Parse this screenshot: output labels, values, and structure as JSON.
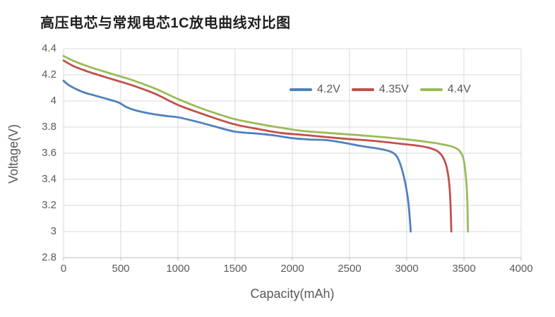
{
  "title": "高压电芯与常规电芯1C放电曲线对比图",
  "colors": {
    "background": "#FFFFFF",
    "grid": "#D9D9D9",
    "axis": "#BFBFBF",
    "tick_text": "#595959",
    "axis_title_text": "#595959",
    "title_text": "#1F1F1F",
    "series_blue": "#4F81BD",
    "series_red": "#C0504D",
    "series_green": "#9BBB59"
  },
  "chart_data": {
    "type": "line",
    "title": "高压电芯与常规电芯1C放电曲线对比图",
    "xlabel": "Capacity(mAh)",
    "ylabel": "Voltage(V)",
    "xlim": [
      0,
      4000
    ],
    "ylim": [
      2.8,
      4.4
    ],
    "grid": true,
    "legend_position": "top-right-inside",
    "x_ticks": [
      {
        "value": 0,
        "label": "0"
      },
      {
        "value": 500,
        "label": "500"
      },
      {
        "value": 1000,
        "label": "1000"
      },
      {
        "value": 1500,
        "label": "1500"
      },
      {
        "value": 2000,
        "label": "2000"
      },
      {
        "value": 2500,
        "label": "2500"
      },
      {
        "value": 3000,
        "label": "3000"
      },
      {
        "value": 3500,
        "label": "3500"
      },
      {
        "value": 4000,
        "label": "4000"
      }
    ],
    "y_ticks": [
      {
        "value": 2.8,
        "label": "2.8"
      },
      {
        "value": 3.0,
        "label": "3"
      },
      {
        "value": 3.2,
        "label": "3.2"
      },
      {
        "value": 3.4,
        "label": "3.4"
      },
      {
        "value": 3.6,
        "label": "3.6"
      },
      {
        "value": 3.8,
        "label": "3.8"
      },
      {
        "value": 4.0,
        "label": "4"
      },
      {
        "value": 4.2,
        "label": "4.2"
      },
      {
        "value": 4.4,
        "label": "4.4"
      }
    ],
    "series": [
      {
        "name": "4.2V",
        "color": "#4F81BD",
        "points": [
          [
            0,
            4.155
          ],
          [
            40,
            4.125
          ],
          [
            100,
            4.095
          ],
          [
            180,
            4.065
          ],
          [
            280,
            4.04
          ],
          [
            380,
            4.015
          ],
          [
            460,
            3.995
          ],
          [
            500,
            3.98
          ],
          [
            545,
            3.955
          ],
          [
            620,
            3.93
          ],
          [
            750,
            3.905
          ],
          [
            900,
            3.885
          ],
          [
            1000,
            3.875
          ],
          [
            1150,
            3.845
          ],
          [
            1300,
            3.81
          ],
          [
            1500,
            3.765
          ],
          [
            1700,
            3.75
          ],
          [
            1850,
            3.735
          ],
          [
            2000,
            3.715
          ],
          [
            2150,
            3.705
          ],
          [
            2300,
            3.7
          ],
          [
            2450,
            3.68
          ],
          [
            2600,
            3.655
          ],
          [
            2750,
            3.635
          ],
          [
            2850,
            3.615
          ],
          [
            2910,
            3.58
          ],
          [
            2950,
            3.5
          ],
          [
            2985,
            3.38
          ],
          [
            3015,
            3.22
          ],
          [
            3035,
            3.0
          ]
        ]
      },
      {
        "name": "4.35V",
        "color": "#C0504D",
        "points": [
          [
            0,
            4.31
          ],
          [
            80,
            4.27
          ],
          [
            180,
            4.235
          ],
          [
            300,
            4.2
          ],
          [
            450,
            4.16
          ],
          [
            600,
            4.12
          ],
          [
            800,
            4.055
          ],
          [
            1000,
            3.97
          ],
          [
            1200,
            3.905
          ],
          [
            1350,
            3.86
          ],
          [
            1500,
            3.82
          ],
          [
            1700,
            3.785
          ],
          [
            1900,
            3.755
          ],
          [
            2100,
            3.74
          ],
          [
            2400,
            3.715
          ],
          [
            2700,
            3.695
          ],
          [
            2950,
            3.672
          ],
          [
            3100,
            3.657
          ],
          [
            3200,
            3.64
          ],
          [
            3270,
            3.615
          ],
          [
            3320,
            3.565
          ],
          [
            3355,
            3.47
          ],
          [
            3378,
            3.3
          ],
          [
            3390,
            3.0
          ]
        ]
      },
      {
        "name": "4.4V",
        "color": "#9BBB59",
        "points": [
          [
            0,
            4.345
          ],
          [
            80,
            4.31
          ],
          [
            180,
            4.275
          ],
          [
            300,
            4.24
          ],
          [
            450,
            4.2
          ],
          [
            600,
            4.16
          ],
          [
            800,
            4.095
          ],
          [
            1000,
            4.015
          ],
          [
            1200,
            3.945
          ],
          [
            1350,
            3.9
          ],
          [
            1500,
            3.86
          ],
          [
            1700,
            3.825
          ],
          [
            1900,
            3.795
          ],
          [
            2100,
            3.77
          ],
          [
            2400,
            3.75
          ],
          [
            2700,
            3.73
          ],
          [
            2950,
            3.71
          ],
          [
            3150,
            3.69
          ],
          [
            3300,
            3.67
          ],
          [
            3400,
            3.65
          ],
          [
            3460,
            3.62
          ],
          [
            3495,
            3.56
          ],
          [
            3515,
            3.44
          ],
          [
            3528,
            3.28
          ],
          [
            3535,
            3.0
          ]
        ]
      }
    ]
  }
}
